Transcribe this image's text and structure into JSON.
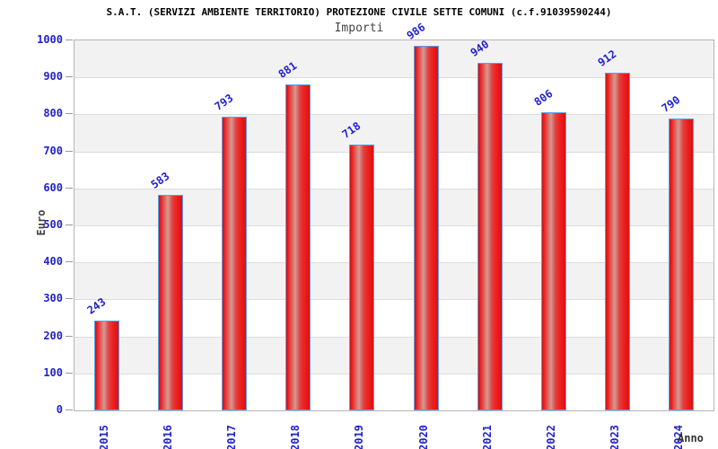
{
  "header": {
    "title": "S.A.T. (SERVIZI AMBIENTE TERRITORIO) PROTEZIONE CIVILE SETTE COMUNI (c.f.91039590244)",
    "subtitle": "Importi"
  },
  "chart_data": {
    "type": "bar",
    "title": "S.A.T. (SERVIZI AMBIENTE TERRITORIO) PROTEZIONE CIVILE SETTE COMUNI (c.f.91039590244)",
    "subtitle": "Importi",
    "categories": [
      "2015",
      "2016",
      "2017",
      "2018",
      "2019",
      "2020",
      "2021",
      "2022",
      "2023",
      "2024"
    ],
    "values": [
      243,
      583,
      793,
      881,
      718,
      986,
      940,
      806,
      912,
      790
    ],
    "xlabel": "Anno",
    "ylabel": "Euro",
    "ylim": [
      0,
      1000
    ],
    "ytick_step": 100,
    "legend": "none",
    "grid": "horizontal-bands",
    "colors": {
      "bar_fill": "#ee1c1c",
      "bar_highlight": "#d39a94",
      "bar_border": "#58a0e8",
      "axis_text": "#2222cc",
      "band_fill": "#f2f2f2",
      "gridline": "#dcdcdc",
      "plot_border": "#b4b4b4",
      "title_text": "#000000",
      "subtitle_text": "#444444"
    }
  }
}
